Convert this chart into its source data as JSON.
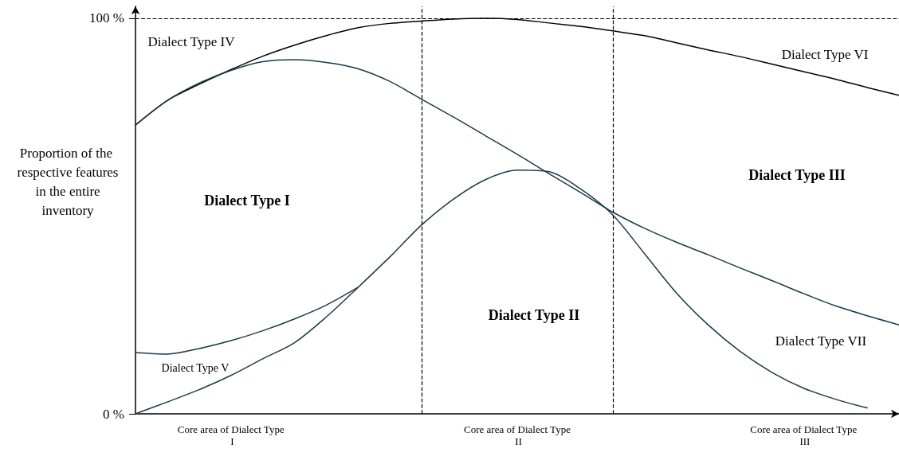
{
  "chart_data": {
    "type": "line",
    "ylabel": "Proportion of the respective features in the entire inventory",
    "categories": [
      null,
      null,
      null,
      "Core area of Dialect Type I",
      null,
      null,
      null,
      null,
      null,
      null,
      null,
      null,
      "Core area of Dialect Type II",
      null,
      null,
      null,
      null,
      null,
      null,
      null,
      null,
      "Core area of Dialect Type III",
      null,
      null,
      null
    ],
    "ylim": [
      0,
      103
    ],
    "yticks": [
      {
        "value": 0,
        "label": "0 %"
      },
      {
        "value": 100,
        "label": "100 %"
      }
    ],
    "marker": "none",
    "line_style": "solid",
    "series": [
      {
        "color": "#000000",
        "values": [
          73.0,
          79.2,
          83.3,
          87.0,
          90.4,
          93.2,
          95.6,
          97.6,
          98.7,
          99.3,
          99.8,
          100,
          99.7,
          98.8,
          97.9,
          96.8,
          95.6,
          93.8,
          92.0,
          90.3,
          88.4,
          86.5,
          84.6,
          82.5,
          80.5
        ]
      },
      {
        "color": "#1c3a4a",
        "values": [
          73.0,
          79.2,
          83.6,
          86.8,
          89.0,
          89.5,
          88.8,
          87.2,
          84.0,
          79.5,
          75.0,
          70.3,
          65.6,
          60.7,
          55.9,
          51.0,
          46.9,
          43.4,
          40.2,
          36.9,
          33.7,
          30.4,
          27.3,
          24.8,
          22.5
        ]
      },
      {
        "color": "#1c3a4a",
        "values": [
          0,
          3.0,
          6.1,
          9.7,
          13.9,
          18.0,
          24.5,
          32.0,
          39.7,
          47.8,
          54.3,
          59.2,
          61.6,
          61.2,
          56.8,
          50.3,
          40.5,
          30.6,
          22.5,
          15.8,
          10.5,
          6.5,
          3.7,
          1.5,
          null
        ]
      },
      {
        "color": "#1c3a4a",
        "values": [
          15.5,
          15.1,
          16.5,
          18.5,
          21.0,
          24.0,
          27.5,
          32.0,
          null,
          null,
          null,
          null,
          null,
          null,
          null,
          null,
          null,
          null,
          null,
          null,
          null,
          null,
          null,
          null,
          null
        ]
      }
    ],
    "ref_lines": [
      {
        "axis": "y",
        "value": 100,
        "line_style": "dashed",
        "color": "#000000"
      }
    ],
    "annotations": [
      "Dialect Type IV",
      "Dialect Type VI",
      "Dialect Type I",
      "Dialect Type II",
      "Dialect Type III",
      "Dialect Type VII",
      "Dialect Type V"
    ]
  }
}
